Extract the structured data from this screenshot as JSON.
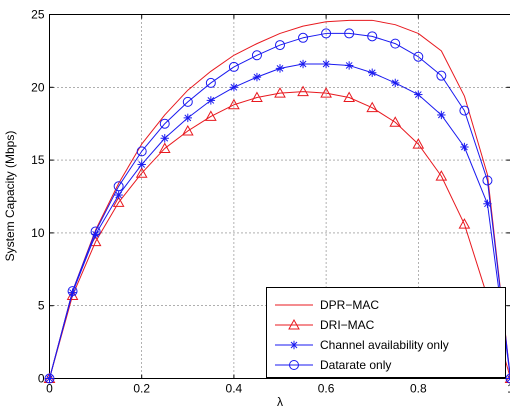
{
  "chart_data": {
    "type": "line",
    "xlabel": "λ",
    "ylabel": "System Capacity (Mbps)",
    "xlim": [
      0,
      1
    ],
    "ylim": [
      0,
      25
    ],
    "xticks": [
      "0",
      "0.2",
      "0.4",
      "0.6",
      "0.8",
      "1"
    ],
    "yticks": [
      "0",
      "5",
      "10",
      "15",
      "20",
      "25"
    ],
    "grid": true,
    "legend_position": "bottom-right",
    "x": [
      0,
      0.05,
      0.1,
      0.15,
      0.2,
      0.25,
      0.3,
      0.35,
      0.4,
      0.45,
      0.5,
      0.55,
      0.6,
      0.65,
      0.7,
      0.75,
      0.8,
      0.85,
      0.9,
      0.95,
      1.0
    ],
    "series": [
      {
        "name": "DPR−MAC",
        "color": "#e8191f",
        "marker": "none",
        "values": [
          0,
          6.0,
          10.2,
          13.4,
          16.1,
          18.1,
          19.8,
          21.1,
          22.2,
          23.0,
          23.7,
          24.2,
          24.5,
          24.6,
          24.6,
          24.3,
          23.7,
          22.5,
          19.4,
          14.0,
          0
        ]
      },
      {
        "name": "DRI−MAC",
        "color": "#e8191f",
        "marker": "triangle",
        "values": [
          0,
          5.7,
          9.4,
          12.1,
          14.1,
          15.8,
          17.0,
          18.0,
          18.8,
          19.3,
          19.6,
          19.7,
          19.6,
          19.3,
          18.6,
          17.6,
          16.1,
          13.9,
          10.6,
          5.6,
          0
        ]
      },
      {
        "name": "Channel availability only",
        "color": "#1a1af0",
        "marker": "star",
        "values": [
          0,
          5.9,
          9.9,
          12.6,
          14.7,
          16.5,
          17.9,
          19.1,
          20.0,
          20.7,
          21.3,
          21.6,
          21.6,
          21.5,
          21.0,
          20.3,
          19.5,
          18.1,
          15.9,
          12.0,
          0
        ]
      },
      {
        "name": "Datarate only",
        "color": "#1a1af0",
        "marker": "circle",
        "values": [
          0,
          6.0,
          10.1,
          13.2,
          15.6,
          17.5,
          19.0,
          20.3,
          21.4,
          22.2,
          22.9,
          23.4,
          23.7,
          23.7,
          23.5,
          23.0,
          22.1,
          20.8,
          18.4,
          13.6,
          0
        ]
      }
    ]
  }
}
